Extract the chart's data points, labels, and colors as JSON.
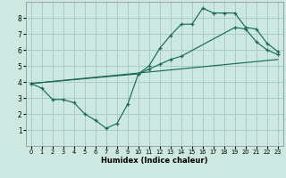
{
  "xlabel": "Humidex (Indice chaleur)",
  "bg_color": "#cce8e0",
  "grid_color": "#aacccc",
  "line_color": "#1a6b5a",
  "xlim": [
    -0.5,
    23.5
  ],
  "ylim": [
    0,
    9
  ],
  "xticks": [
    0,
    1,
    2,
    3,
    4,
    5,
    6,
    7,
    8,
    9,
    10,
    11,
    12,
    13,
    14,
    15,
    16,
    17,
    18,
    19,
    20,
    21,
    22,
    23
  ],
  "yticks": [
    1,
    2,
    3,
    4,
    5,
    6,
    7,
    8
  ],
  "line1_x": [
    0,
    1,
    2,
    3,
    4,
    5,
    6,
    7,
    8,
    9,
    10,
    11,
    12,
    13,
    14,
    15,
    16,
    17,
    18,
    19,
    20,
    21,
    22,
    23
  ],
  "line1_y": [
    3.9,
    3.6,
    2.9,
    2.9,
    2.7,
    2.0,
    1.6,
    1.1,
    1.4,
    2.6,
    4.5,
    5.0,
    6.1,
    6.9,
    7.6,
    7.6,
    8.6,
    8.3,
    8.3,
    8.3,
    7.4,
    7.3,
    6.4,
    5.9
  ],
  "line2_x": [
    0,
    10,
    11,
    12,
    13,
    14,
    19,
    20,
    21,
    22,
    23
  ],
  "line2_y": [
    3.9,
    4.5,
    4.8,
    5.1,
    5.4,
    5.6,
    7.4,
    7.3,
    6.5,
    6.0,
    5.7
  ],
  "line3_x": [
    0,
    23
  ],
  "line3_y": [
    3.9,
    5.4
  ]
}
